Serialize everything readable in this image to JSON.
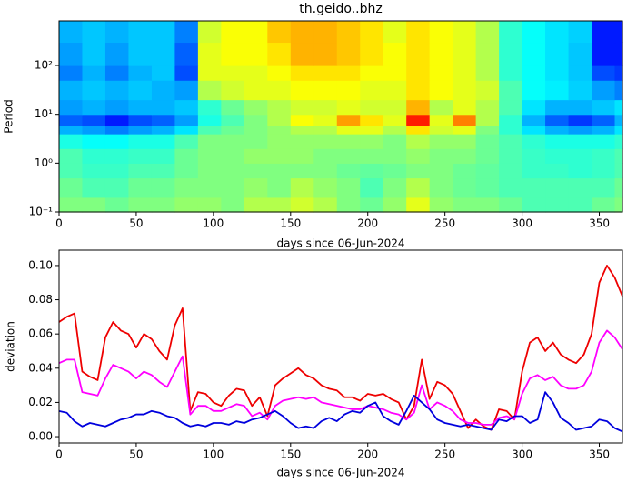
{
  "chart_data": [
    {
      "type": "heatmap",
      "title": "th.geido..bhz",
      "xlabel": "days since 06-Jun-2024",
      "ylabel": "Period",
      "log_y": true,
      "colormap": "jet",
      "xlim": [
        0,
        365
      ],
      "xticks": [
        0,
        50,
        100,
        150,
        200,
        250,
        300,
        350
      ],
      "ylim": [
        0.1,
        820
      ],
      "yticks": [
        {
          "value": 0.1,
          "label": "10⁻¹"
        },
        {
          "value": 1,
          "label": "10⁰"
        },
        {
          "value": 10,
          "label": "10¹"
        },
        {
          "value": 100,
          "label": "10²"
        }
      ],
      "x_edges": [
        0,
        15,
        30,
        45,
        60,
        75,
        90,
        105,
        120,
        135,
        150,
        165,
        180,
        195,
        210,
        225,
        240,
        255,
        270,
        285,
        300,
        315,
        330,
        345,
        360,
        365
      ],
      "y_edges": [
        0.1,
        0.2,
        0.5,
        1,
        2,
        4,
        6,
        10,
        20,
        50,
        100,
        300,
        820
      ],
      "z": [
        [
          0.5,
          0.5,
          0.48,
          0.5,
          0.5,
          0.52,
          0.52,
          0.5,
          0.55,
          0.55,
          0.58,
          0.55,
          0.5,
          0.48,
          0.52,
          0.6,
          0.52,
          0.5,
          0.5,
          0.48,
          0.45,
          0.45,
          0.45,
          0.48,
          0.5
        ],
        [
          0.48,
          0.45,
          0.45,
          0.48,
          0.48,
          0.5,
          0.5,
          0.5,
          0.52,
          0.5,
          0.55,
          0.52,
          0.5,
          0.45,
          0.5,
          0.55,
          0.5,
          0.48,
          0.47,
          0.45,
          0.45,
          0.45,
          0.45,
          0.45,
          0.48
        ],
        [
          0.45,
          0.43,
          0.43,
          0.45,
          0.45,
          0.48,
          0.5,
          0.5,
          0.5,
          0.5,
          0.5,
          0.5,
          0.48,
          0.47,
          0.48,
          0.5,
          0.5,
          0.48,
          0.47,
          0.45,
          0.43,
          0.43,
          0.42,
          0.43,
          0.45
        ],
        [
          0.45,
          0.42,
          0.42,
          0.43,
          0.43,
          0.48,
          0.5,
          0.5,
          0.52,
          0.52,
          0.52,
          0.5,
          0.5,
          0.5,
          0.5,
          0.52,
          0.5,
          0.5,
          0.48,
          0.45,
          0.43,
          0.42,
          0.42,
          0.43,
          0.45
        ],
        [
          0.4,
          0.38,
          0.38,
          0.4,
          0.4,
          0.45,
          0.5,
          0.5,
          0.5,
          0.52,
          0.52,
          0.52,
          0.52,
          0.52,
          0.5,
          0.55,
          0.52,
          0.52,
          0.48,
          0.45,
          0.42,
          0.4,
          0.4,
          0.4,
          0.42
        ],
        [
          0.3,
          0.28,
          0.25,
          0.28,
          0.3,
          0.35,
          0.45,
          0.48,
          0.5,
          0.52,
          0.55,
          0.55,
          0.6,
          0.6,
          0.55,
          0.65,
          0.58,
          0.6,
          0.5,
          0.42,
          0.35,
          0.3,
          0.28,
          0.3,
          0.35
        ],
        [
          0.22,
          0.2,
          0.15,
          0.2,
          0.22,
          0.28,
          0.4,
          0.45,
          0.5,
          0.55,
          0.62,
          0.6,
          0.72,
          0.65,
          0.6,
          0.85,
          0.6,
          0.75,
          0.55,
          0.42,
          0.3,
          0.22,
          0.18,
          0.22,
          0.3
        ],
        [
          0.28,
          0.3,
          0.28,
          0.3,
          0.3,
          0.32,
          0.42,
          0.48,
          0.52,
          0.55,
          0.58,
          0.58,
          0.6,
          0.58,
          0.58,
          0.7,
          0.55,
          0.6,
          0.55,
          0.45,
          0.35,
          0.3,
          0.3,
          0.32,
          0.35
        ],
        [
          0.3,
          0.32,
          0.3,
          0.32,
          0.3,
          0.28,
          0.55,
          0.58,
          0.6,
          0.6,
          0.62,
          0.62,
          0.62,
          0.6,
          0.6,
          0.65,
          0.62,
          0.6,
          0.58,
          0.45,
          0.38,
          0.36,
          0.33,
          0.28,
          0.25
        ],
        [
          0.25,
          0.3,
          0.25,
          0.3,
          0.32,
          0.2,
          0.6,
          0.6,
          0.6,
          0.62,
          0.65,
          0.65,
          0.65,
          0.62,
          0.62,
          0.65,
          0.62,
          0.6,
          0.55,
          0.42,
          0.38,
          0.35,
          0.32,
          0.2,
          0.18
        ],
        [
          0.28,
          0.32,
          0.28,
          0.32,
          0.32,
          0.22,
          0.6,
          0.62,
          0.62,
          0.65,
          0.7,
          0.7,
          0.68,
          0.65,
          0.62,
          0.65,
          0.62,
          0.6,
          0.55,
          0.42,
          0.38,
          0.35,
          0.32,
          0.15,
          0.15
        ],
        [
          0.3,
          0.32,
          0.3,
          0.32,
          0.32,
          0.25,
          0.58,
          0.62,
          0.62,
          0.68,
          0.7,
          0.7,
          0.68,
          0.65,
          0.6,
          0.65,
          0.62,
          0.6,
          0.55,
          0.42,
          0.38,
          0.35,
          0.33,
          0.15,
          0.15
        ]
      ]
    },
    {
      "type": "line",
      "xlabel": "days since 06-Jun-2024",
      "ylabel": "deviation",
      "xlim": [
        0,
        365
      ],
      "xticks": [
        0,
        50,
        100,
        150,
        200,
        250,
        300,
        350
      ],
      "ylim": [
        -0.0037,
        0.109
      ],
      "yticks": [
        {
          "value": 0,
          "label": "0.00"
        },
        {
          "value": 0.02,
          "label": "0.02"
        },
        {
          "value": 0.04,
          "label": "0.04"
        },
        {
          "value": 0.06,
          "label": "0.06"
        },
        {
          "value": 0.08,
          "label": "0.08"
        },
        {
          "value": 0.1,
          "label": "0.10"
        }
      ],
      "x": [
        0,
        5,
        10,
        15,
        20,
        25,
        30,
        35,
        40,
        45,
        50,
        55,
        60,
        65,
        70,
        75,
        80,
        85,
        90,
        95,
        100,
        105,
        110,
        115,
        120,
        125,
        130,
        135,
        140,
        145,
        150,
        155,
        160,
        165,
        170,
        175,
        180,
        185,
        190,
        195,
        200,
        205,
        210,
        215,
        220,
        225,
        230,
        235,
        240,
        245,
        250,
        255,
        260,
        265,
        270,
        275,
        280,
        285,
        290,
        295,
        300,
        305,
        310,
        315,
        320,
        325,
        330,
        335,
        340,
        345,
        350,
        355,
        360,
        365
      ],
      "series": [
        {
          "color": "#ee0000",
          "values": [
            0.067,
            0.07,
            0.072,
            0.038,
            0.035,
            0.033,
            0.058,
            0.067,
            0.062,
            0.06,
            0.052,
            0.06,
            0.057,
            0.05,
            0.045,
            0.065,
            0.075,
            0.015,
            0.026,
            0.025,
            0.02,
            0.018,
            0.024,
            0.028,
            0.027,
            0.018,
            0.023,
            0.012,
            0.03,
            0.034,
            0.037,
            0.04,
            0.036,
            0.034,
            0.03,
            0.028,
            0.027,
            0.023,
            0.023,
            0.021,
            0.025,
            0.024,
            0.025,
            0.022,
            0.02,
            0.01,
            0.018,
            0.045,
            0.022,
            0.032,
            0.03,
            0.025,
            0.015,
            0.005,
            0.01,
            0.006,
            0.004,
            0.016,
            0.015,
            0.01,
            0.038,
            0.055,
            0.058,
            0.05,
            0.055,
            0.048,
            0.045,
            0.043,
            0.048,
            0.06,
            0.09,
            0.1,
            0.093,
            0.082
          ]
        },
        {
          "color": "#ff00ff",
          "values": [
            0.043,
            0.045,
            0.045,
            0.026,
            0.025,
            0.024,
            0.034,
            0.042,
            0.04,
            0.038,
            0.034,
            0.038,
            0.036,
            0.032,
            0.029,
            0.038,
            0.047,
            0.013,
            0.018,
            0.018,
            0.015,
            0.015,
            0.017,
            0.019,
            0.018,
            0.012,
            0.014,
            0.01,
            0.018,
            0.021,
            0.022,
            0.023,
            0.022,
            0.023,
            0.02,
            0.019,
            0.018,
            0.017,
            0.016,
            0.016,
            0.018,
            0.017,
            0.016,
            0.014,
            0.013,
            0.01,
            0.014,
            0.03,
            0.016,
            0.02,
            0.018,
            0.015,
            0.01,
            0.008,
            0.008,
            0.007,
            0.007,
            0.011,
            0.012,
            0.01,
            0.025,
            0.034,
            0.036,
            0.033,
            0.035,
            0.03,
            0.028,
            0.028,
            0.03,
            0.038,
            0.055,
            0.062,
            0.058,
            0.051
          ]
        },
        {
          "color": "#0000dd",
          "values": [
            0.015,
            0.014,
            0.009,
            0.006,
            0.008,
            0.007,
            0.006,
            0.008,
            0.01,
            0.011,
            0.013,
            0.013,
            0.015,
            0.014,
            0.012,
            0.011,
            0.008,
            0.006,
            0.007,
            0.006,
            0.008,
            0.008,
            0.007,
            0.009,
            0.008,
            0.01,
            0.011,
            0.013,
            0.015,
            0.012,
            0.008,
            0.005,
            0.006,
            0.005,
            0.009,
            0.011,
            0.009,
            0.013,
            0.015,
            0.014,
            0.018,
            0.02,
            0.012,
            0.009,
            0.007,
            0.015,
            0.024,
            0.02,
            0.016,
            0.01,
            0.008,
            0.007,
            0.006,
            0.007,
            0.006,
            0.005,
            0.004,
            0.01,
            0.009,
            0.012,
            0.012,
            0.008,
            0.01,
            0.026,
            0.02,
            0.011,
            0.008,
            0.004,
            0.005,
            0.006,
            0.01,
            0.009,
            0.005,
            0.003
          ]
        }
      ]
    }
  ]
}
